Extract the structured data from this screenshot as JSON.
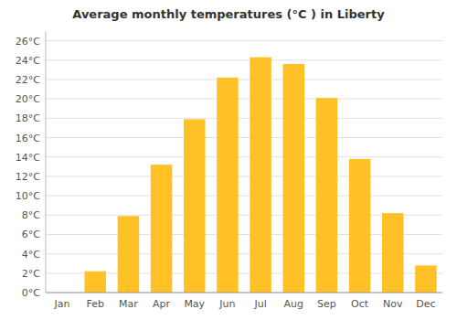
{
  "chart_data": {
    "type": "bar",
    "title": "Average monthly temperatures (°C ) in Liberty",
    "categories": [
      "Jan",
      "Feb",
      "Mar",
      "Apr",
      "May",
      "Jun",
      "Jul",
      "Aug",
      "Sep",
      "Oct",
      "Nov",
      "Dec"
    ],
    "values": [
      0,
      2.2,
      7.9,
      13.2,
      17.9,
      22.2,
      24.3,
      23.6,
      20.1,
      13.8,
      8.2,
      2.8
    ],
    "color": "#FFC125",
    "ylim": [
      0,
      27
    ],
    "yticks": [
      {
        "value": 0,
        "label": "0°C"
      },
      {
        "value": 2,
        "label": "2°C"
      },
      {
        "value": 4,
        "label": "4°C"
      },
      {
        "value": 6,
        "label": "6°C"
      },
      {
        "value": 8,
        "label": "8°C"
      },
      {
        "value": 10,
        "label": "10°C"
      },
      {
        "value": 12,
        "label": "12°C"
      },
      {
        "value": 14,
        "label": "14°C"
      },
      {
        "value": 16,
        "label": "16°C"
      },
      {
        "value": 18,
        "label": "18°C"
      },
      {
        "value": 20,
        "label": "20°C"
      },
      {
        "value": 22,
        "label": "22°C"
      },
      {
        "value": 24,
        "label": "24°C"
      },
      {
        "value": 26,
        "label": "26°C"
      }
    ],
    "grid": true
  }
}
